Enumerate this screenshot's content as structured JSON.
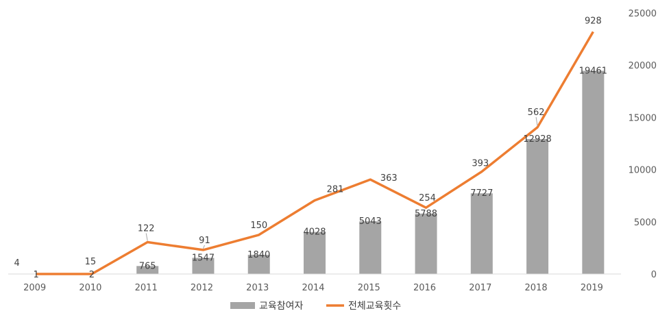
{
  "chart_data": {
    "type": "bar",
    "categories": [
      "2009",
      "2010",
      "2011",
      "2012",
      "2013",
      "2014",
      "2015",
      "2016",
      "2017",
      "2018",
      "2019"
    ],
    "series": [
      {
        "name": "교육참여자",
        "type": "bar",
        "axis": "right",
        "values": [
          1,
          2,
          765,
          1547,
          1840,
          4028,
          5043,
          5788,
          7727,
          12928,
          19461
        ],
        "labels": [
          "1",
          "2",
          "765",
          "1547",
          "1840",
          "4028",
          "5043",
          "5788",
          "7727",
          "12928",
          "19461"
        ],
        "color": "#a5a5a5"
      },
      {
        "name": "전체교육횟수",
        "type": "line",
        "axis": "right",
        "values": [
          4,
          15,
          122,
          91,
          150,
          281,
          363,
          254,
          393,
          562,
          928
        ],
        "labels": [
          "4",
          "15",
          "122",
          "91",
          "150",
          "281",
          "363",
          "254",
          "393",
          "562",
          "928"
        ],
        "plot_values": [
          0,
          0,
          3050,
          2300,
          3750,
          7050,
          9050,
          6350,
          9800,
          14050,
          23200
        ],
        "color": "#ed7d31"
      }
    ],
    "y_axis": {
      "position": "right",
      "range": [
        0,
        25000
      ],
      "ticks": [
        "0",
        "5000",
        "10000",
        "15000",
        "20000",
        "25000"
      ],
      "tick_values": [
        0,
        5000,
        10000,
        15000,
        20000,
        25000
      ]
    },
    "grid": false,
    "legend": "bottom"
  }
}
